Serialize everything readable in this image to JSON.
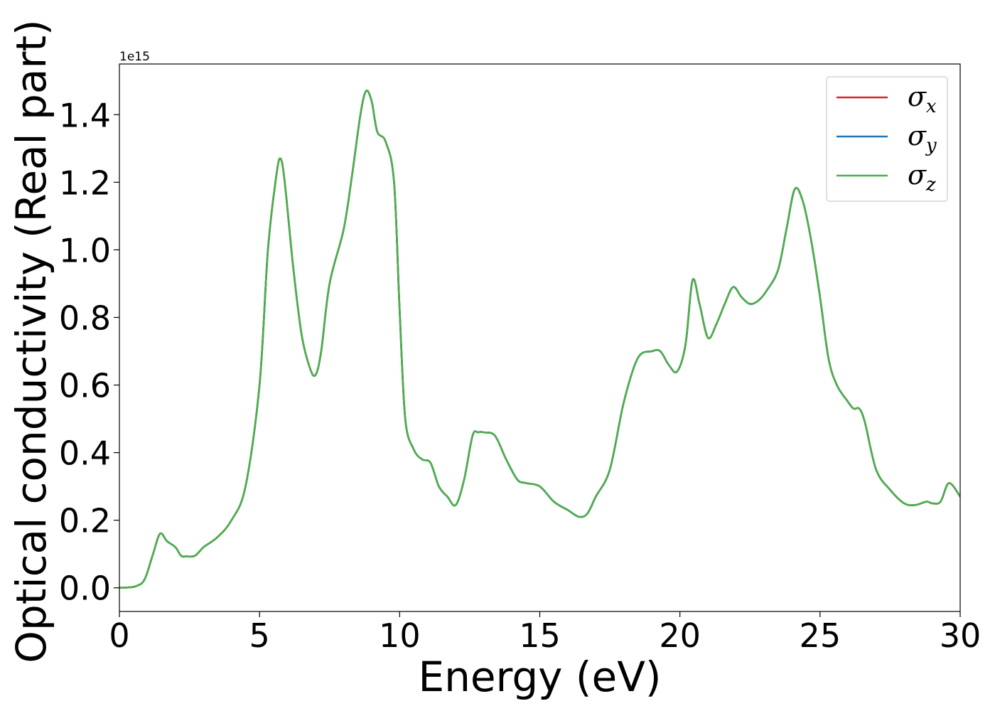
{
  "chart_data": {
    "type": "line",
    "title": "",
    "xlabel": "Energy (eV)",
    "ylabel": "Optical conductivity (Real part)",
    "y_offset_label": "1e15",
    "xlim": [
      0,
      30
    ],
    "ylim": [
      -0.07,
      1.55
    ],
    "x_ticks": [
      0,
      5,
      10,
      15,
      20,
      25,
      30
    ],
    "y_ticks": [
      0.0,
      0.2,
      0.4,
      0.6,
      0.8,
      1.0,
      1.2,
      1.4
    ],
    "x_tick_labels": [
      "0",
      "5",
      "10",
      "15",
      "20",
      "25",
      "30"
    ],
    "y_tick_labels": [
      "0.0",
      "0.2",
      "0.4",
      "0.6",
      "0.8",
      "1.0",
      "1.2",
      "1.4"
    ],
    "grid": false,
    "legend_position": "top-right",
    "x": [
      0,
      0.3,
      0.6,
      0.9,
      1.2,
      1.45,
      1.7,
      2.0,
      2.2,
      2.4,
      2.7,
      3.0,
      3.5,
      4.0,
      4.5,
      5.0,
      5.3,
      5.6,
      5.75,
      5.9,
      6.2,
      6.5,
      6.8,
      7.0,
      7.2,
      7.5,
      8.0,
      8.3,
      8.6,
      8.8,
      9.0,
      9.2,
      9.5,
      9.8,
      10.0,
      10.2,
      10.5,
      10.8,
      11.1,
      11.4,
      11.7,
      12.0,
      12.3,
      12.6,
      12.8,
      13.0,
      13.4,
      13.8,
      14.2,
      14.5,
      15.0,
      15.5,
      16.0,
      16.4,
      16.7,
      17.0,
      17.5,
      18.0,
      18.5,
      19.0,
      19.3,
      19.6,
      19.9,
      20.2,
      20.45,
      20.7,
      21.0,
      21.3,
      21.6,
      21.9,
      22.2,
      22.5,
      22.8,
      23.1,
      23.5,
      23.8,
      24.1,
      24.4,
      24.7,
      25.0,
      25.3,
      25.6,
      26.0,
      26.2,
      26.4,
      26.6,
      27.0,
      27.5,
      28.0,
      28.4,
      28.8,
      29.0,
      29.3,
      29.6,
      30.0
    ],
    "series": [
      {
        "name": "σx",
        "label_base": "σ",
        "label_sub": "x",
        "color": "#d62728",
        "values": [
          0.0,
          0.001,
          0.005,
          0.025,
          0.1,
          0.16,
          0.138,
          0.12,
          0.095,
          0.093,
          0.095,
          0.12,
          0.15,
          0.2,
          0.3,
          0.6,
          1.0,
          1.22,
          1.27,
          1.2,
          0.95,
          0.75,
          0.65,
          0.63,
          0.7,
          0.9,
          1.06,
          1.22,
          1.4,
          1.47,
          1.44,
          1.35,
          1.32,
          1.2,
          0.82,
          0.5,
          0.41,
          0.38,
          0.37,
          0.3,
          0.27,
          0.245,
          0.32,
          0.45,
          0.46,
          0.46,
          0.45,
          0.38,
          0.32,
          0.31,
          0.3,
          0.255,
          0.23,
          0.21,
          0.22,
          0.27,
          0.35,
          0.55,
          0.68,
          0.7,
          0.7,
          0.66,
          0.64,
          0.72,
          0.91,
          0.84,
          0.74,
          0.78,
          0.84,
          0.89,
          0.86,
          0.84,
          0.85,
          0.88,
          0.94,
          1.06,
          1.18,
          1.14,
          1.02,
          0.86,
          0.68,
          0.6,
          0.55,
          0.53,
          0.53,
          0.49,
          0.35,
          0.29,
          0.25,
          0.245,
          0.255,
          0.25,
          0.255,
          0.31,
          0.27
        ]
      },
      {
        "name": "σy",
        "label_base": "σ",
        "label_sub": "y",
        "color": "#1f77b4",
        "values": [
          0.0,
          0.001,
          0.005,
          0.025,
          0.1,
          0.16,
          0.138,
          0.12,
          0.095,
          0.093,
          0.095,
          0.12,
          0.15,
          0.2,
          0.3,
          0.6,
          1.0,
          1.22,
          1.27,
          1.2,
          0.95,
          0.75,
          0.65,
          0.63,
          0.7,
          0.9,
          1.06,
          1.22,
          1.4,
          1.47,
          1.44,
          1.35,
          1.32,
          1.2,
          0.82,
          0.5,
          0.41,
          0.38,
          0.37,
          0.3,
          0.27,
          0.245,
          0.32,
          0.45,
          0.46,
          0.46,
          0.45,
          0.38,
          0.32,
          0.31,
          0.3,
          0.255,
          0.23,
          0.21,
          0.22,
          0.27,
          0.35,
          0.55,
          0.68,
          0.7,
          0.7,
          0.66,
          0.64,
          0.72,
          0.91,
          0.84,
          0.74,
          0.78,
          0.84,
          0.89,
          0.86,
          0.84,
          0.85,
          0.88,
          0.94,
          1.06,
          1.18,
          1.14,
          1.02,
          0.86,
          0.68,
          0.6,
          0.55,
          0.53,
          0.53,
          0.49,
          0.35,
          0.29,
          0.25,
          0.245,
          0.255,
          0.25,
          0.255,
          0.31,
          0.27
        ]
      },
      {
        "name": "σz",
        "label_base": "σ",
        "label_sub": "z",
        "color": "#4daf4a",
        "values": [
          0.0,
          0.001,
          0.005,
          0.025,
          0.1,
          0.16,
          0.138,
          0.12,
          0.095,
          0.093,
          0.095,
          0.12,
          0.15,
          0.2,
          0.3,
          0.6,
          1.0,
          1.22,
          1.27,
          1.2,
          0.95,
          0.75,
          0.65,
          0.63,
          0.7,
          0.9,
          1.06,
          1.22,
          1.4,
          1.47,
          1.44,
          1.35,
          1.32,
          1.2,
          0.82,
          0.5,
          0.41,
          0.38,
          0.37,
          0.3,
          0.27,
          0.245,
          0.32,
          0.45,
          0.46,
          0.46,
          0.45,
          0.38,
          0.32,
          0.31,
          0.3,
          0.255,
          0.23,
          0.21,
          0.22,
          0.27,
          0.35,
          0.55,
          0.68,
          0.7,
          0.7,
          0.66,
          0.64,
          0.72,
          0.91,
          0.84,
          0.74,
          0.78,
          0.84,
          0.89,
          0.86,
          0.84,
          0.85,
          0.88,
          0.94,
          1.06,
          1.18,
          1.14,
          1.02,
          0.86,
          0.68,
          0.6,
          0.55,
          0.53,
          0.53,
          0.49,
          0.35,
          0.29,
          0.25,
          0.245,
          0.255,
          0.25,
          0.255,
          0.31,
          0.27
        ]
      }
    ]
  }
}
